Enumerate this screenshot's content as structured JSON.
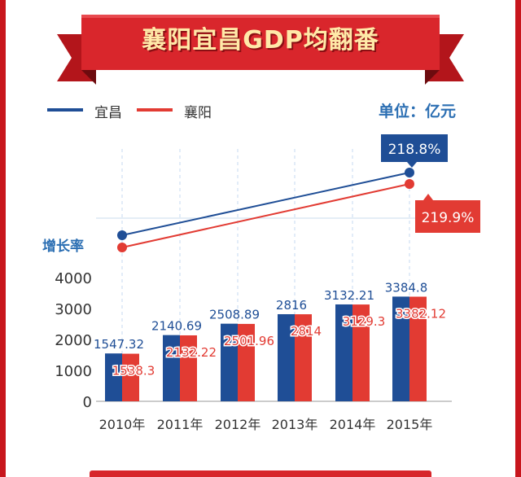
{
  "header": {
    "title": "襄阳宜昌GDP均翻番"
  },
  "legend": [
    {
      "name": "宜昌",
      "color": "#1f4e96"
    },
    {
      "name": "襄阳",
      "color": "#e23b33"
    }
  ],
  "unit": "单位：亿元",
  "growth": {
    "label": "增长率",
    "yichang_label": "218.8%",
    "xiangyang_label": "219.9%"
  },
  "chart_data": {
    "type": "bar",
    "categories": [
      "2010年",
      "2011年",
      "2012年",
      "2013年",
      "2014年",
      "2015年"
    ],
    "ylim": [
      0,
      4000
    ],
    "yticks": [
      "0",
      "1000",
      "2000",
      "3000",
      "4000"
    ],
    "grid": false,
    "series": [
      {
        "name": "宜昌",
        "color": "#1f4e96",
        "values": [
          1547.32,
          2140.69,
          2508.89,
          2816,
          3132.21,
          3384.8
        ],
        "labels": [
          "1547.32",
          "2140.69",
          "2508.89",
          "2816",
          "3132.21",
          "3384.8"
        ]
      },
      {
        "name": "襄阳",
        "color": "#e23b33",
        "values": [
          1538.3,
          2132.22,
          2501.96,
          2814,
          3129.3,
          3382.12
        ],
        "labels": [
          "1538.3",
          "2132.22",
          "2501.96",
          "2814",
          "3129.3",
          "3382.12"
        ]
      }
    ],
    "growth_lines": [
      {
        "name": "宜昌",
        "from": "2010年",
        "to": "2015年",
        "value": "218.8%"
      },
      {
        "name": "襄阳",
        "from": "2010年",
        "to": "2015年",
        "value": "219.9%"
      }
    ]
  }
}
